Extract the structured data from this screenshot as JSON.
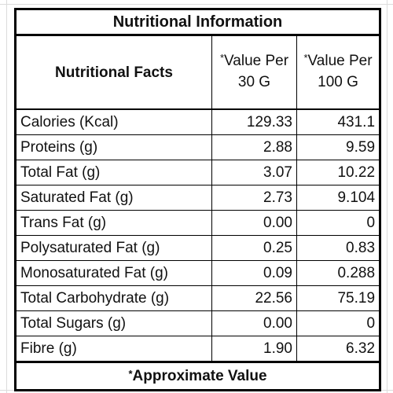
{
  "table": {
    "title": "Nutritional Information",
    "header": {
      "facts_label": "Nutritional Facts",
      "star": "*",
      "per30_label": "Value Per 30 G",
      "per100_label": "Value Per 100 G"
    },
    "rows": [
      {
        "nutrient": "Calories (Kcal)",
        "per30": "129.33",
        "per100": "431.1"
      },
      {
        "nutrient": "Proteins (g)",
        "per30": "2.88",
        "per100": "9.59"
      },
      {
        "nutrient": "Total Fat (g)",
        "per30": "3.07",
        "per100": "10.22"
      },
      {
        "nutrient": "Saturated Fat (g)",
        "per30": "2.73",
        "per100": "9.104"
      },
      {
        "nutrient": "Trans Fat (g)",
        "per30": "0.00",
        "per100": "0"
      },
      {
        "nutrient": "Polysaturated Fat (g)",
        "per30": "0.25",
        "per100": "0.83"
      },
      {
        "nutrient": "Monosaturated Fat (g)",
        "per30": "0.09",
        "per100": "0.288"
      },
      {
        "nutrient": "Total Carbohydrate (g)",
        "per30": "22.56",
        "per100": "75.19"
      },
      {
        "nutrient": "Total Sugars (g)",
        "per30": "0.00",
        "per100": "0"
      },
      {
        "nutrient": "Fibre (g)",
        "per30": "1.90",
        "per100": "6.32"
      }
    ],
    "footer": {
      "star": "*",
      "text": "Approximate Value"
    }
  }
}
